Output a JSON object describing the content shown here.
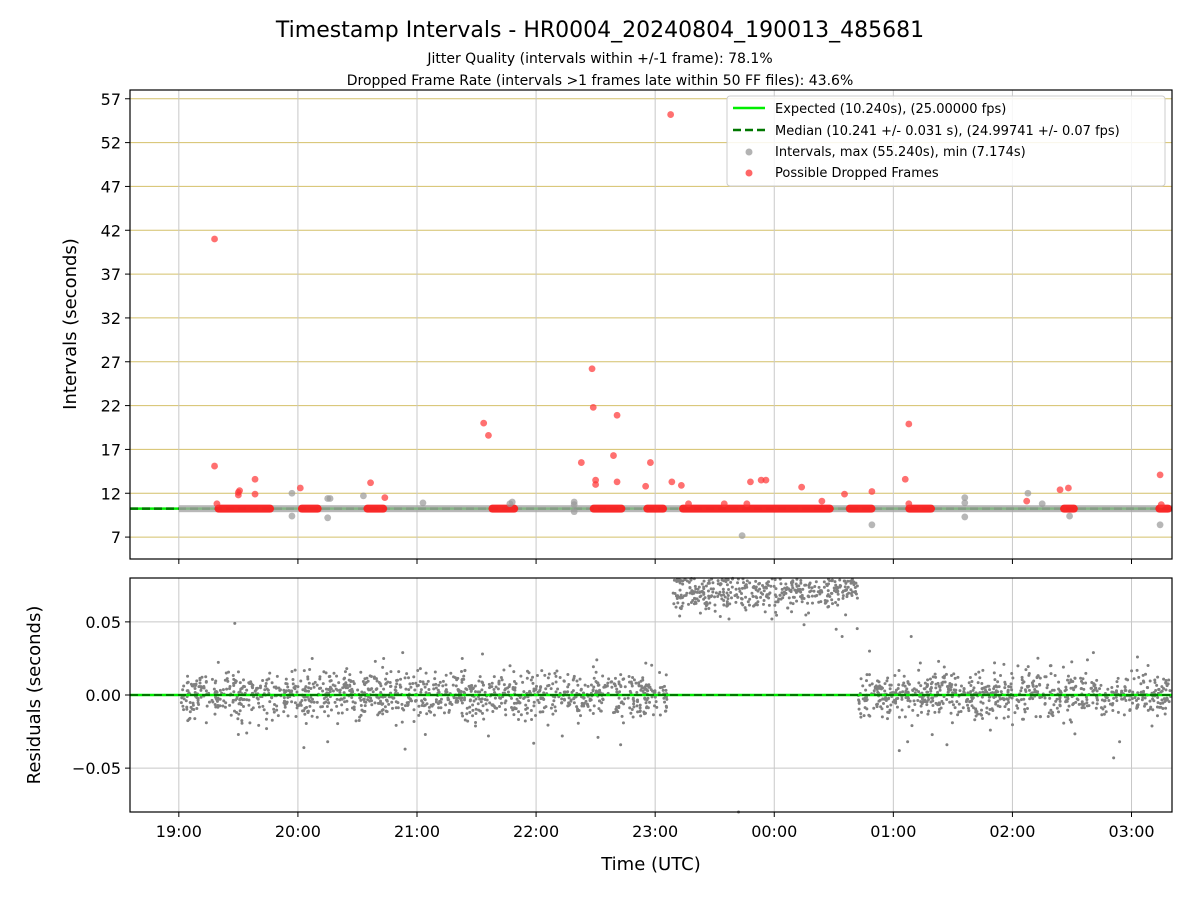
{
  "chart_data": [
    {
      "type": "scatter",
      "title": "Timestamp Intervals - HR0004_20240804_190013_485681",
      "subtitle_lines": [
        "Jitter Quality (intervals within +/-1 frame): 78.1%",
        "Dropped Frame Rate (intervals >1 frames late within 50 FF files): 43.6%"
      ],
      "xlabel": "",
      "ylabel": "Intervals (seconds)",
      "x_unit": "hours after 19:00 UTC",
      "xlim": [
        -0.41,
        8.34
      ],
      "ylim": [
        4.5,
        58.0
      ],
      "yticks": [
        7,
        12,
        17,
        22,
        27,
        32,
        37,
        42,
        47,
        52,
        57
      ],
      "grid": true,
      "legend_position": "top-right",
      "legend": [
        {
          "label": "Expected (10.240s), (25.00000 fps)",
          "kind": "line",
          "color": "#00ee00"
        },
        {
          "label": "Median (10.241 +/- 0.031 s), (24.99741 +/- 0.07 fps)",
          "kind": "dashed",
          "color": "#007700"
        },
        {
          "label": "Intervals, max (55.240s), min (7.174s)",
          "kind": "dot",
          "color": "#999999"
        },
        {
          "label": "Possible Dropped Frames",
          "kind": "dot",
          "color": "#ff3333"
        }
      ],
      "expected_y": 10.24,
      "median_y": 10.241,
      "red_band_segments": [
        [
          0.3,
          0.8
        ],
        [
          1.0,
          1.2
        ],
        [
          1.55,
          1.75
        ],
        [
          2.6,
          2.85
        ],
        [
          3.45,
          3.75
        ],
        [
          3.9,
          4.1
        ],
        [
          4.2,
          5.5
        ],
        [
          5.6,
          5.85
        ],
        [
          6.1,
          6.35
        ],
        [
          7.4,
          7.55
        ],
        [
          8.2,
          8.34
        ]
      ],
      "series": [
        {
          "name": "Possible Dropped Frames",
          "color": "#ff3333",
          "points": [
            [
              0.3,
              41.0
            ],
            [
              0.3,
              15.1
            ],
            [
              0.32,
              10.8
            ],
            [
              0.5,
              12.1
            ],
            [
              0.5,
              11.8
            ],
            [
              0.51,
              12.3
            ],
            [
              0.64,
              13.6
            ],
            [
              0.64,
              11.9
            ],
            [
              1.02,
              12.6
            ],
            [
              1.61,
              13.2
            ],
            [
              1.73,
              11.5
            ],
            [
              2.56,
              20.0
            ],
            [
              2.6,
              18.6
            ],
            [
              3.38,
              15.5
            ],
            [
              3.47,
              26.2
            ],
            [
              3.48,
              21.8
            ],
            [
              3.5,
              13.0
            ],
            [
              3.5,
              13.5
            ],
            [
              3.65,
              16.3
            ],
            [
              3.68,
              20.9
            ],
            [
              3.68,
              13.3
            ],
            [
              3.92,
              12.8
            ],
            [
              3.96,
              15.5
            ],
            [
              4.13,
              55.2
            ],
            [
              4.14,
              13.3
            ],
            [
              4.22,
              12.9
            ],
            [
              4.28,
              10.8
            ],
            [
              4.58,
              10.8
            ],
            [
              4.77,
              10.8
            ],
            [
              4.8,
              13.3
            ],
            [
              4.89,
              13.5
            ],
            [
              4.93,
              13.5
            ],
            [
              5.23,
              12.7
            ],
            [
              5.4,
              11.1
            ],
            [
              5.59,
              11.9
            ],
            [
              5.82,
              12.2
            ],
            [
              6.1,
              13.6
            ],
            [
              6.13,
              19.9
            ],
            [
              6.13,
              10.8
            ],
            [
              7.12,
              11.1
            ],
            [
              7.4,
              12.4
            ],
            [
              7.47,
              12.6
            ],
            [
              8.24,
              14.1
            ],
            [
              8.25,
              10.7
            ]
          ]
        },
        {
          "name": "Intervals",
          "color": "#999999",
          "points": [
            [
              0.95,
              9.4
            ],
            [
              0.95,
              12.0
            ],
            [
              1.25,
              11.4
            ],
            [
              1.27,
              11.4
            ],
            [
              1.25,
              9.2
            ],
            [
              1.55,
              11.7
            ],
            [
              2.05,
              10.9
            ],
            [
              2.8,
              11.0
            ],
            [
              2.78,
              10.8
            ],
            [
              3.32,
              11.0
            ],
            [
              3.32,
              9.9
            ],
            [
              3.32,
              10.7
            ],
            [
              4.73,
              7.17
            ],
            [
              5.82,
              8.4
            ],
            [
              6.6,
              10.9
            ],
            [
              6.6,
              11.5
            ],
            [
              6.6,
              9.3
            ],
            [
              7.13,
              12.0
            ],
            [
              7.25,
              10.8
            ],
            [
              7.48,
              9.4
            ],
            [
              8.24,
              8.4
            ]
          ]
        }
      ]
    },
    {
      "type": "scatter",
      "title": "",
      "xlabel": "Time (UTC)",
      "ylabel": "Residuals (seconds)",
      "x_unit": "hours after 19:00 UTC",
      "xlim": [
        -0.41,
        8.34
      ],
      "ylim": [
        -0.08,
        0.08
      ],
      "yticks": [
        -0.05,
        0.0,
        0.05
      ],
      "ytick_labels": [
        "−0.05",
        "0.00",
        "0.05"
      ],
      "xticks": [
        0,
        1,
        2,
        3,
        4,
        5,
        6,
        7,
        8
      ],
      "xtick_labels": [
        "19:00",
        "20:00",
        "21:00",
        "22:00",
        "23:00",
        "00:00",
        "01:00",
        "02:00",
        "03:00"
      ],
      "grid": true,
      "zero_line_color": "#00ee00",
      "median_line_color": "#007700",
      "series": [
        {
          "name": "",
          "color": "#808080",
          "segments": [
            {
              "x_start": 0.02,
              "x_end": 4.1,
              "center": 0.0,
              "spread": 0.008
            },
            {
              "x_start": 4.15,
              "x_end": 5.7,
              "center": 0.071,
              "spread": 0.007
            },
            {
              "x_start": 5.7,
              "x_end": 8.34,
              "center": 0.0,
              "spread": 0.008
            }
          ],
          "outliers": [
            [
              0.47,
              0.049
            ],
            [
              0.5,
              -0.027
            ],
            [
              0.57,
              -0.026
            ],
            [
              1.05,
              -0.036
            ],
            [
              1.12,
              0.025
            ],
            [
              1.25,
              -0.032
            ],
            [
              1.65,
              0.023
            ],
            [
              1.72,
              0.025
            ],
            [
              1.88,
              0.029
            ],
            [
              1.9,
              -0.037
            ],
            [
              2.07,
              -0.027
            ],
            [
              2.38,
              0.025
            ],
            [
              2.55,
              0.028
            ],
            [
              2.6,
              -0.028
            ],
            [
              2.98,
              -0.033
            ],
            [
              3.22,
              -0.028
            ],
            [
              3.51,
              0.024
            ],
            [
              3.52,
              -0.029
            ],
            [
              3.71,
              -0.034
            ],
            [
              4.7,
              -0.08
            ],
            [
              4.38,
              0.056
            ],
            [
              4.62,
              0.052
            ],
            [
              4.98,
              0.052
            ],
            [
              5.25,
              0.048
            ],
            [
              5.52,
              0.045
            ],
            [
              5.57,
              0.04
            ],
            [
              5.8,
              0.03
            ],
            [
              6.15,
              0.04
            ],
            [
              6.05,
              -0.038
            ],
            [
              6.12,
              -0.032
            ],
            [
              6.45,
              -0.034
            ],
            [
              6.38,
              0.023
            ],
            [
              6.85,
              0.022
            ],
            [
              7.85,
              -0.043
            ],
            [
              7.63,
              0.024
            ],
            [
              7.68,
              0.029
            ],
            [
              7.9,
              -0.032
            ],
            [
              8.05,
              0.026
            ]
          ]
        }
      ]
    }
  ]
}
